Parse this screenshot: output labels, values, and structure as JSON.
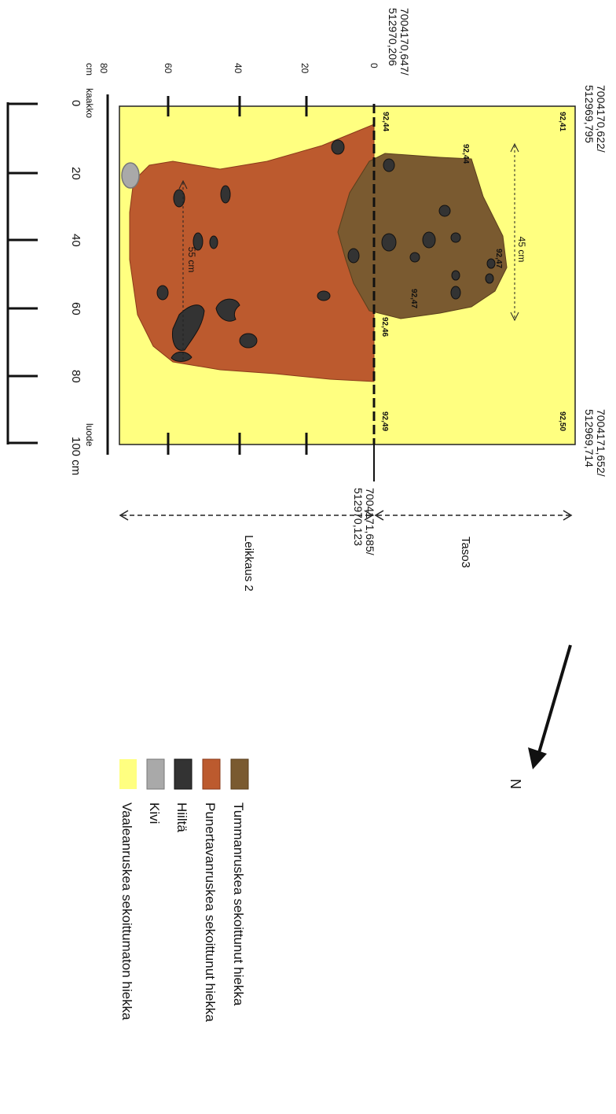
{
  "coordinates": {
    "top_left": "7004170,622/\n512969,795",
    "top_mid": "7004170,647/\n512970,206",
    "bottom_left": "7004171,652/\n512969,714",
    "bottom_mid": "7004171,685/\n512970,123"
  },
  "elevations": [
    "92,41",
    "92,44",
    "92,44",
    "92,47",
    "92,47",
    "92,46",
    "92,50",
    "92,49"
  ],
  "top_ruler": {
    "unit": "cm",
    "ticks": [
      "0",
      "20",
      "40",
      "60",
      "80"
    ],
    "end_label": "kaakko"
  },
  "side_ruler": {
    "ticks": [
      "0",
      "20",
      "40",
      "60",
      "80",
      "100 cm"
    ],
    "start_label": "kaakko",
    "end_label": "luode"
  },
  "measurements": {
    "brown_width": "45 cm",
    "red_width": "55 cm"
  },
  "sections": {
    "taso": "Taso3",
    "leikkaus": "Leikkaus 2"
  },
  "north_label": "N",
  "legend": [
    {
      "label": "Tummanruskea sekoittunut hiekka",
      "color": "#7a5a30"
    },
    {
      "label": "Punertavanruskea sekoittunut hiekka",
      "color": "#bc5a2e"
    },
    {
      "label": "Hiiltä",
      "color": "#333333"
    },
    {
      "label": "Kivi",
      "color": "#a9a9a9"
    },
    {
      "label": "Vaaleanruskea sekoittumaton hiekka",
      "color": "#ffff80"
    }
  ],
  "colors": {
    "yellow": "#ffff80",
    "red": "#bc5a2e",
    "brown": "#7a5a30",
    "charcoal": "#333333",
    "stone": "#a9a9a9"
  }
}
